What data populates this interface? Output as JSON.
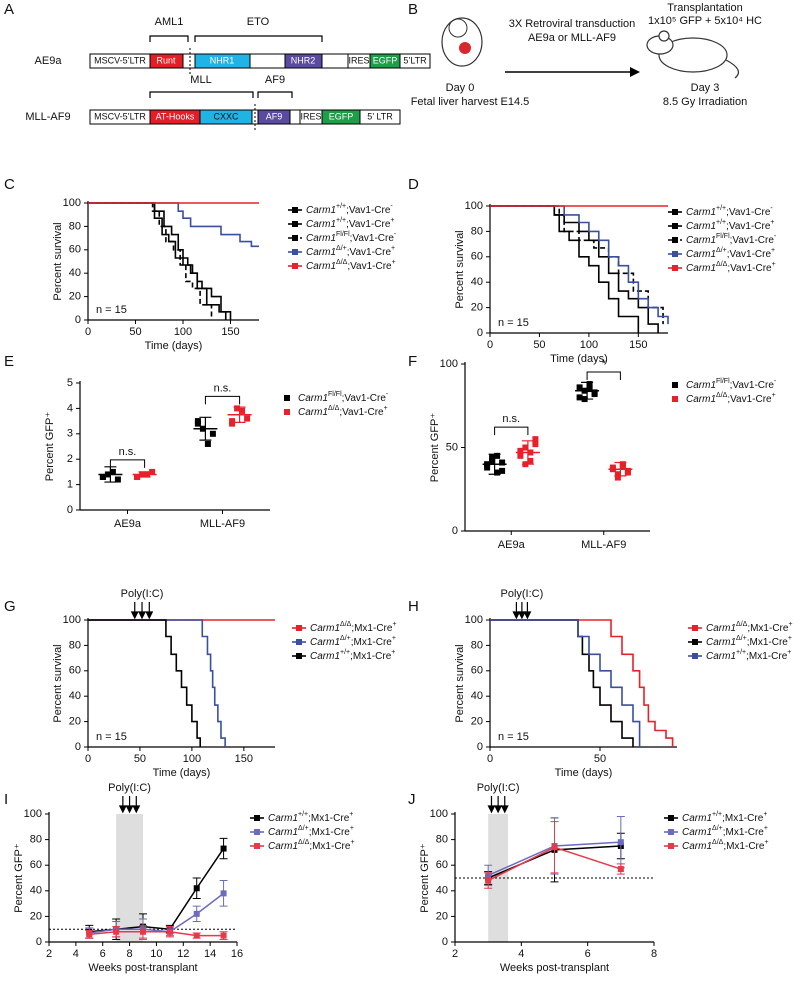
{
  "diagrams": {
    "A": {
      "label": "A",
      "constructs": [
        {
          "name": "AE9a",
          "brackets": [
            "AML1",
            "ETO"
          ],
          "segments": [
            "MSCV-5’LTR",
            "Runt",
            "NHR1",
            "NHR2",
            "IRES",
            "EGFP",
            "5’LTR"
          ]
        },
        {
          "name": "MLL-AF9",
          "brackets": [
            "MLL",
            "AF9"
          ],
          "segments": [
            "MSCV-5’LTR",
            "AT-Hooks",
            "CXXC",
            "AF9",
            "IRES",
            "EGFP",
            "5’ LTR"
          ]
        }
      ]
    },
    "B": {
      "label": "B",
      "arrow": [
        "3X Retroviral transduction",
        "AE9a or MLL-AF9"
      ],
      "start": [
        "Day 0",
        "Fetal liver harvest E14.5"
      ],
      "end": [
        "Transplantation",
        "1x10⁵ GFP + 5x10⁴ HC",
        "Day 3",
        "8.5 Gy Irradiation"
      ]
    }
  },
  "chart_data": [
    {
      "panel": "C",
      "type": "step",
      "xlabel": "Time (days)",
      "ylabel": "Percent survival",
      "xlim": [
        0,
        180
      ],
      "xticks": [
        0,
        50,
        100,
        150
      ],
      "ylim": [
        0,
        100
      ],
      "yticks": [
        0,
        20,
        40,
        60,
        80,
        100
      ],
      "annotations": [
        "n = 15"
      ],
      "legend": "right",
      "series": [
        {
          "name": "Carm1+/+;Vav1-Cre-",
          "color": "#000000",
          "x": [
            0,
            70,
            80,
            88,
            95,
            100,
            105,
            110,
            115,
            120,
            130,
            140,
            145
          ],
          "values": [
            100,
            93,
            80,
            73,
            60,
            53,
            47,
            40,
            33,
            27,
            20,
            7,
            0
          ]
        },
        {
          "name": "Carm1+/+;Vav1-Cre+",
          "color": "#000000",
          "x": [
            0,
            70,
            78,
            85,
            92,
            100,
            108,
            115,
            125,
            138,
            150
          ],
          "values": [
            100,
            87,
            73,
            67,
            53,
            47,
            40,
            27,
            13,
            7,
            0
          ]
        },
        {
          "name": "Carm1Fl/Fl;Vav1-Cre-",
          "color": "#000000",
          "dash": true,
          "x": [
            0,
            68,
            75,
            82,
            90,
            97,
            103,
            110,
            118,
            130
          ],
          "values": [
            100,
            93,
            80,
            67,
            60,
            47,
            33,
            27,
            13,
            0
          ]
        },
        {
          "name": "Carm1Δ/+;Vav1-Cre+",
          "color": "#3a4fa0",
          "x": [
            0,
            95,
            100,
            108,
            140,
            160,
            172,
            180
          ],
          "values": [
            100,
            93,
            87,
            80,
            73,
            67,
            63,
            63
          ]
        },
        {
          "name": "Carm1Δ/Δ;Vav1-Cre+",
          "color": "#e8202a",
          "x": [
            0,
            180
          ],
          "values": [
            100,
            100
          ]
        }
      ]
    },
    {
      "panel": "D",
      "type": "step",
      "xlabel": "Time (days)",
      "ylabel": "Percent survival",
      "xlim": [
        0,
        180
      ],
      "xticks": [
        0,
        50,
        100,
        150
      ],
      "ylim": [
        0,
        100
      ],
      "yticks": [
        0,
        20,
        40,
        60,
        80,
        100
      ],
      "annotations": [
        "n = 15"
      ],
      "legend": "right",
      "series": [
        {
          "name": "Carm1+/+;Vav1-Cre-",
          "color": "#000000",
          "x": [
            0,
            65,
            70,
            80,
            90,
            100,
            110,
            120,
            130,
            150
          ],
          "values": [
            100,
            93,
            80,
            73,
            60,
            53,
            40,
            27,
            13,
            0
          ]
        },
        {
          "name": "Carm1+/+;Vav1-Cre+",
          "color": "#000000",
          "x": [
            0,
            65,
            75,
            90,
            100,
            110,
            120,
            130,
            140,
            150,
            160,
            170
          ],
          "values": [
            100,
            93,
            87,
            80,
            73,
            60,
            47,
            33,
            27,
            20,
            7,
            0
          ]
        },
        {
          "name": "Carm1Fl/Fl;Vav1-Cre-",
          "color": "#000000",
          "dash": true,
          "x": [
            0,
            70,
            75,
            90,
            105,
            120,
            130,
            145,
            160,
            175
          ],
          "values": [
            100,
            93,
            80,
            73,
            67,
            60,
            47,
            33,
            20,
            7
          ]
        },
        {
          "name": "Carm1Δ/+;Vav1-Cre+",
          "color": "#3a4fa0",
          "x": [
            0,
            75,
            90,
            100,
            110,
            120,
            130,
            140,
            150,
            160,
            170,
            180
          ],
          "values": [
            100,
            93,
            87,
            80,
            73,
            60,
            53,
            40,
            27,
            20,
            13,
            7
          ]
        },
        {
          "name": "Carm1Δ/Δ;Vav1-Cre+",
          "color": "#e8202a",
          "x": [
            0,
            180
          ],
          "values": [
            100,
            100
          ]
        }
      ]
    },
    {
      "panel": "E",
      "type": "strip",
      "ylabel": "Percent GFP⁺",
      "categories": [
        "AE9a",
        "MLL-AF9"
      ],
      "ylim": [
        0,
        5
      ],
      "yticks": [
        0,
        1,
        2,
        3,
        4,
        5
      ],
      "legend": "right",
      "significance": [
        {
          "label": "n.s.",
          "category": 0
        },
        {
          "label": "n.s.",
          "category": 1
        }
      ],
      "series": [
        {
          "name": "Carm1Fl/Fl;Vav1-Cre-",
          "color": "#000000",
          "values": [
            [
              1.3,
              1.4,
              1.5,
              1.2,
              1.3
            ],
            [
              3.4,
              3.2,
              2.6,
              3.0,
              3.5
            ]
          ],
          "means": [
            1.4,
            3.2
          ],
          "errors": [
            0.3,
            0.45
          ]
        },
        {
          "name": "Carm1Δ/Δ;Vav1-Cre+",
          "color": "#e8202a",
          "values": [
            [
              1.3,
              1.4,
              1.4,
              1.5,
              1.3
            ],
            [
              3.5,
              4.0,
              3.9,
              3.6,
              3.4
            ]
          ],
          "means": [
            1.4,
            3.75
          ],
          "errors": [
            0.1,
            0.3
          ]
        }
      ]
    },
    {
      "panel": "F",
      "type": "strip",
      "ylabel": "Percent GFP⁺",
      "categories": [
        "AE9a",
        "MLL-AF9"
      ],
      "ylim": [
        0,
        100
      ],
      "yticks": [
        0,
        50,
        100
      ],
      "legend": "right",
      "significance": [
        {
          "label": "n.s.",
          "category": 0
        },
        {
          "label": "*",
          "category": 1
        }
      ],
      "series": [
        {
          "name": "Carm1Fl/Fl;Vav1-Cre-",
          "color": "#000000",
          "values": [
            [
              38,
              42,
              45,
              36,
              40,
              44,
              35,
              41
            ],
            [
              80,
              84,
              88,
              82,
              86,
              79,
              85,
              83
            ]
          ],
          "means": [
            40,
            84
          ],
          "errors": [
            6,
            5
          ]
        },
        {
          "name": "Carm1Δ/Δ;Vav1-Cre+",
          "color": "#e8202a",
          "values": [
            [
              45,
              50,
              42,
              52,
              48,
              40,
              47,
              55
            ],
            [
              37,
              34,
              40,
              36,
              38,
              32,
              39,
              35
            ]
          ],
          "means": [
            47,
            37
          ],
          "errors": [
            7,
            4
          ]
        }
      ]
    },
    {
      "panel": "G",
      "type": "step",
      "xlabel": "Time (days)",
      "ylabel": "Percent survival",
      "xlim": [
        0,
        180
      ],
      "xticks": [
        0,
        50,
        100,
        150
      ],
      "ylim": [
        0,
        100
      ],
      "yticks": [
        0,
        20,
        40,
        60,
        80,
        100
      ],
      "annotations": [
        "n = 15"
      ],
      "legend": "right",
      "treatment": {
        "label": "Poly(I:C)",
        "x": [
          45,
          52,
          59
        ]
      },
      "series": [
        {
          "name": "Carm1Δ/Δ;Mx1-Cre+",
          "color": "#e8202a",
          "x": [
            0,
            180
          ],
          "values": [
            100,
            100
          ]
        },
        {
          "name": "Carm1Δ/+;Mx1-Cre+",
          "color": "#3a4fa0",
          "x": [
            0,
            110,
            115,
            118,
            120,
            122,
            125,
            128,
            132
          ],
          "values": [
            100,
            87,
            73,
            60,
            47,
            33,
            20,
            7,
            0
          ]
        },
        {
          "name": "Carm1+/+;Mx1-Cre+",
          "color": "#000000",
          "x": [
            0,
            75,
            80,
            85,
            90,
            95,
            100,
            105,
            108
          ],
          "values": [
            100,
            87,
            73,
            60,
            47,
            33,
            20,
            7,
            0
          ]
        }
      ]
    },
    {
      "panel": "H",
      "type": "step",
      "xlabel": "Time (days)",
      "ylabel": "Percent survival",
      "xlim": [
        0,
        85
      ],
      "xticks": [
        0,
        50
      ],
      "ylim": [
        0,
        100
      ],
      "yticks": [
        0,
        20,
        40,
        60,
        80,
        100
      ],
      "annotations": [
        "n = 15"
      ],
      "legend": "right",
      "treatment": {
        "label": "Poly(I:C)",
        "x": [
          12,
          14.5,
          17
        ]
      },
      "series": [
        {
          "name": "Carm1Δ/Δ;Mx1-Cre+",
          "color": "#e8202a",
          "x": [
            0,
            55,
            60,
            65,
            68,
            70,
            72,
            75,
            80,
            83
          ],
          "values": [
            100,
            87,
            73,
            60,
            47,
            33,
            20,
            13,
            7,
            0
          ]
        },
        {
          "name": "Carm1Δ/+;Mx1-Cre+",
          "color": "#000000",
          "x": [
            0,
            40,
            42,
            45,
            47,
            50,
            55,
            60,
            65
          ],
          "values": [
            100,
            87,
            73,
            60,
            47,
            33,
            20,
            7,
            0
          ]
        },
        {
          "name": "Carm1+/+;Mx1-Cre+",
          "color": "#3a4fa0",
          "x": [
            0,
            40,
            45,
            50,
            55,
            60,
            65,
            68
          ],
          "values": [
            100,
            87,
            73,
            60,
            47,
            33,
            20,
            0
          ]
        }
      ]
    },
    {
      "panel": "I",
      "type": "line",
      "xlabel": "Weeks post-transplant",
      "ylabel": "Percent GFP⁺",
      "xlim": [
        2,
        16
      ],
      "xticks": [
        2,
        4,
        6,
        8,
        10,
        12,
        14,
        16
      ],
      "ylim": [
        0,
        100
      ],
      "yticks": [
        0,
        20,
        40,
        60,
        80,
        100
      ],
      "legend": "right",
      "treatment": {
        "label": "Poly(I:C)",
        "x": [
          7.5,
          8,
          8.5
        ]
      },
      "shade": [
        7,
        9
      ],
      "hline": 10,
      "series": [
        {
          "name": "Carm1+/+;Mx1-Cre+",
          "color": "#000000",
          "x": [
            5,
            7,
            9,
            11,
            13,
            15
          ],
          "values": [
            8,
            10,
            12,
            10,
            42,
            73
          ],
          "errors": [
            5,
            8,
            10,
            3,
            8,
            8
          ]
        },
        {
          "name": "Carm1Δ/+;Mx1-Cre+",
          "color": "#6b6bc0",
          "x": [
            5,
            7,
            9,
            11,
            13,
            15
          ],
          "values": [
            7,
            10,
            10,
            8,
            22,
            38
          ],
          "errors": [
            4,
            6,
            8,
            3,
            6,
            10
          ]
        },
        {
          "name": "Carm1Δ/Δ;Mx1-Cre+",
          "color": "#e8394a",
          "x": [
            5,
            7,
            9,
            11,
            13,
            15
          ],
          "values": [
            6,
            8,
            8,
            8,
            5,
            5
          ],
          "errors": [
            3,
            4,
            5,
            4,
            2,
            3
          ]
        }
      ]
    },
    {
      "panel": "J",
      "type": "line",
      "xlabel": "Weeks post-transplant",
      "ylabel": "Percent GFP⁺",
      "xlim": [
        2,
        8
      ],
      "xticks": [
        2,
        4,
        6,
        8
      ],
      "ylim": [
        0,
        100
      ],
      "yticks": [
        0,
        20,
        40,
        60,
        80,
        100
      ],
      "legend": "right",
      "treatment": {
        "label": "Poly(I:C)",
        "x": [
          3.1,
          3.3,
          3.5
        ]
      },
      "shade": [
        3,
        3.6
      ],
      "hline": 50,
      "series": [
        {
          "name": "Carm1+/+;Mx1-Cre+",
          "color": "#000000",
          "x": [
            3,
            5,
            7
          ],
          "values": [
            50,
            72,
            75
          ],
          "errors": [
            5,
            25,
            10
          ]
        },
        {
          "name": "Carm1Δ/+;Mx1-Cre+",
          "color": "#6b6bc0",
          "x": [
            3,
            5,
            7
          ],
          "values": [
            52,
            75,
            78
          ],
          "errors": [
            8,
            22,
            20
          ]
        },
        {
          "name": "Carm1Δ/Δ;Mx1-Cre+",
          "color": "#e8394a",
          "x": [
            3,
            5,
            7
          ],
          "values": [
            48,
            74,
            57
          ],
          "errors": [
            6,
            20,
            4
          ]
        }
      ]
    }
  ]
}
